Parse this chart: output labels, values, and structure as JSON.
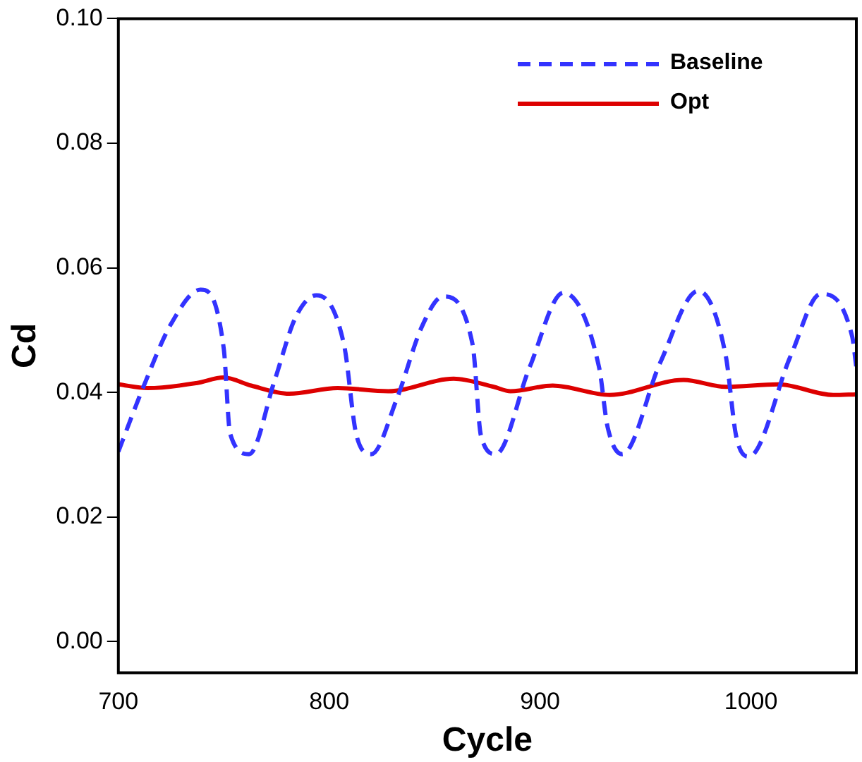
{
  "chart_data": {
    "type": "line",
    "xlabel": "Cycle",
    "ylabel": "Cd",
    "xlim": [
      700,
      1050
    ],
    "ylim": [
      -0.005,
      0.1
    ],
    "xticks": [
      700,
      800,
      900,
      1000
    ],
    "yticks": [
      {
        "value": 0,
        "label": "0.00"
      },
      {
        "value": 0.02,
        "label": "0.02"
      },
      {
        "value": 0.04,
        "label": "0.04"
      },
      {
        "value": 0.06,
        "label": "0.06"
      },
      {
        "value": 0.08,
        "label": "0.08"
      },
      {
        "value": 0.1,
        "label": "0.10"
      }
    ],
    "grid": false,
    "legend": "top right",
    "marker": "none",
    "series": [
      {
        "name": "Baseline",
        "color": "#3333ff",
        "line_style": "dashed",
        "x": [
          700,
          712,
          725,
          739,
          750,
          753,
          762,
          774,
          784,
          794,
          807,
          813,
          820,
          832,
          844,
          854,
          868,
          872,
          879,
          895,
          911,
          928,
          932,
          939,
          957,
          975,
          988,
          993,
          999,
          1019,
          1033,
          1048,
          1050
        ],
        "values": [
          0.0305,
          0.041,
          0.051,
          0.0565,
          0.047,
          0.0334,
          0.0301,
          0.0418,
          0.052,
          0.0556,
          0.0477,
          0.033,
          0.0301,
          0.0389,
          0.0506,
          0.0554,
          0.0477,
          0.033,
          0.0301,
          0.044,
          0.056,
          0.044,
          0.0345,
          0.0301,
          0.0448,
          0.0563,
          0.046,
          0.033,
          0.0297,
          0.046,
          0.0558,
          0.049,
          0.044
        ]
      },
      {
        "name": "Opt",
        "color": "#dd0000",
        "line_style": "solid",
        "x": [
          700,
          714,
          737,
          750,
          763,
          781,
          804,
          828,
          859,
          878,
          886,
          906,
          933,
          968,
          988,
          1013,
          1039,
          1050
        ],
        "values": [
          0.0413,
          0.0407,
          0.0415,
          0.0424,
          0.0411,
          0.0398,
          0.0407,
          0.0402,
          0.0422,
          0.0409,
          0.0402,
          0.0411,
          0.0396,
          0.042,
          0.0409,
          0.0413,
          0.0396,
          0.0397
        ]
      }
    ]
  }
}
